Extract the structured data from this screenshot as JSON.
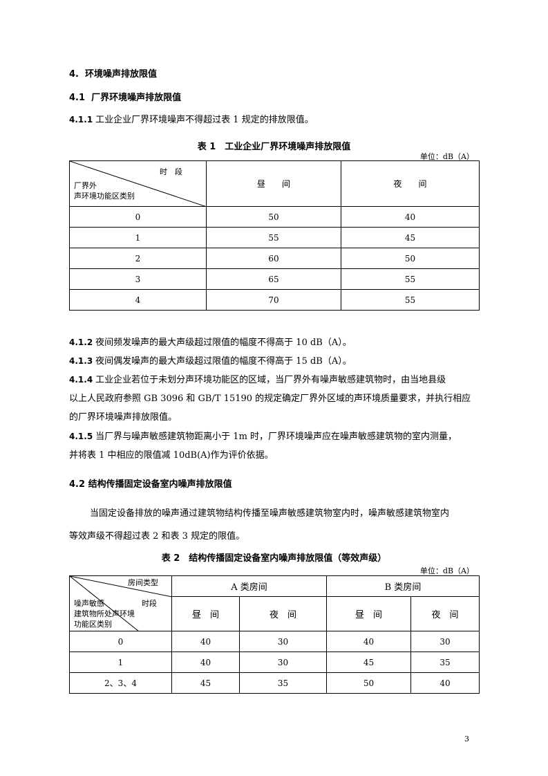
{
  "section4": {
    "num": "4.",
    "title": "环境噪声排放限值"
  },
  "s41": {
    "num": "4.1",
    "title": "厂界环境噪声排放限值"
  },
  "s411": {
    "num": "4.1.1",
    "text": "工业企业厂界环境噪声不得超过表 1 规定的排放限值。"
  },
  "table1": {
    "caption": "表 1　工业企业厂界环境噪声排放限值",
    "unit": "单位：dB（A）",
    "corner_top": "时　段",
    "corner_bottom1": "厂界外",
    "corner_bottom2": "声环境功能区类别",
    "col_day": "昼　　间",
    "col_night": "夜　　间",
    "rows": [
      {
        "cls": "0",
        "day": "50",
        "night": "40"
      },
      {
        "cls": "1",
        "day": "55",
        "night": "45"
      },
      {
        "cls": "2",
        "day": "60",
        "night": "50"
      },
      {
        "cls": "3",
        "day": "65",
        "night": "55"
      },
      {
        "cls": "4",
        "day": "70",
        "night": "55"
      }
    ]
  },
  "s412": {
    "num": "4.1.2",
    "text": "夜间频发噪声的最大声级超过限值的幅度不得高于 10 dB（A）。"
  },
  "s413": {
    "num": "4.1.3",
    "text": "夜间偶发噪声的最大声级超过限值的幅度不得高于 15 dB（A）。"
  },
  "s414": {
    "num": "4.1.4",
    "line1": "工业企业若位于未划分声环境功能区的区域，当厂界外有噪声敏感建筑物时，由当地县级",
    "line2": "以上人民政府参照 GB 3096 和 GB/T 15190 的规定确定厂界外区域的声环境质量要求，并执行相应",
    "line3": "的厂界环境噪声排放限值。"
  },
  "s415": {
    "num": "4.1.5",
    "line1": "当厂界与噪声敏感建筑物距离小于 1m 时，厂界环境噪声应在噪声敏感建筑物的室内测量，",
    "line2": "并将表 1 中相应的限值减 10dB(A)作为评价依据。"
  },
  "s42": {
    "num": "4.2",
    "title": "结构传播固定设备室内噪声排放限值"
  },
  "s42p": {
    "line1": "当固定设备排放的噪声通过建筑物结构传播至噪声敏感建筑物室内时，噪声敏感建筑物室内",
    "line2": "等效声级不得超过表 2 和表 3 规定的限值。"
  },
  "table2": {
    "caption": "表 2　结构传播固定设备室内噪声排放限值（等效声级）",
    "unit": "单位：dB（A）",
    "corner_top": "房间类型",
    "corner_mid": "时段",
    "corner_left1": "噪声敏感",
    "corner_left2": "建筑物所处声环境",
    "corner_left3": "功能区类别",
    "room_a": "A 类房间",
    "room_b": "B 类房间",
    "col_day": "昼　间",
    "col_night": "夜　间",
    "rows": [
      {
        "cls": "0",
        "a_day": "40",
        "a_night": "30",
        "b_day": "40",
        "b_night": "30"
      },
      {
        "cls": "1",
        "a_day": "40",
        "a_night": "30",
        "b_day": "45",
        "b_night": "35"
      },
      {
        "cls": "2、3、4",
        "a_day": "45",
        "a_night": "35",
        "b_day": "50",
        "b_night": "40"
      }
    ]
  },
  "page_number": "3"
}
